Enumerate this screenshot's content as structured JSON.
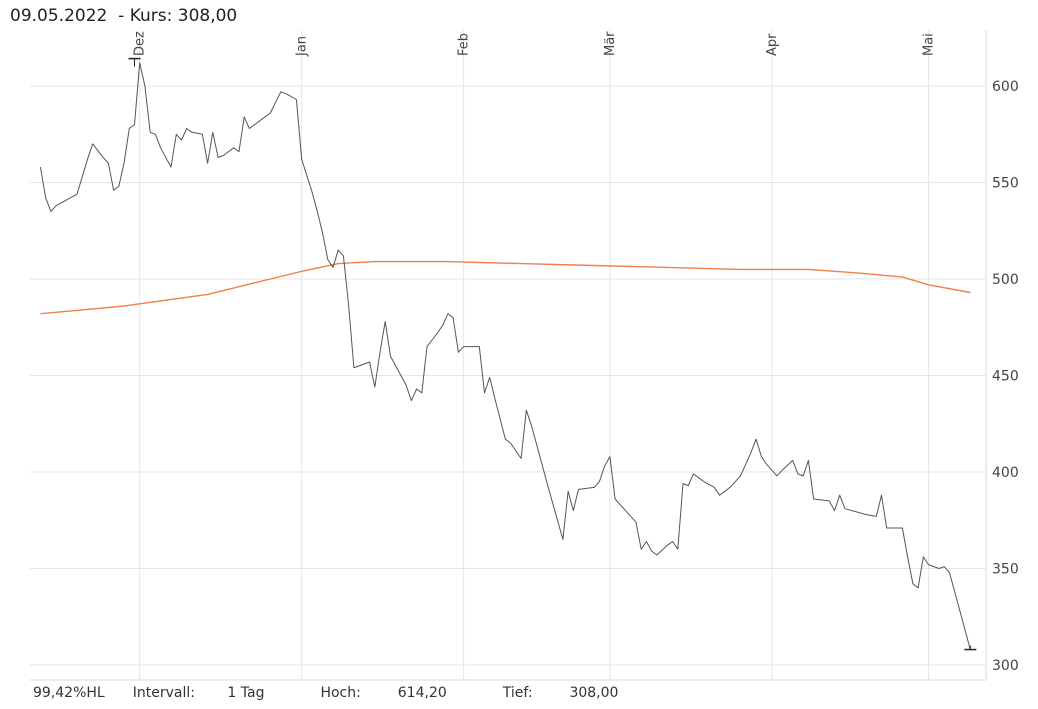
{
  "header": {
    "date": "09.05.2022",
    "kurs_label": "- Kurs:",
    "kurs_value": "308,00"
  },
  "footer": {
    "hl": "99,42%HL",
    "interval_label": "Intervall:",
    "interval_value": "1 Tag",
    "high_label": "Hoch:",
    "high_value": "614,20",
    "low_label": "Tief:",
    "low_value": "308,00"
  },
  "colors": {
    "price": "#555555",
    "ma": "#f0804a",
    "grid": "#e6e6e6"
  },
  "chart_data": {
    "type": "line",
    "title": "",
    "xlabel": "",
    "ylabel": "",
    "ylim": [
      295,
      630
    ],
    "y_ticks": [
      300,
      350,
      400,
      450,
      500,
      550,
      600
    ],
    "y_axis_position": "right",
    "grid": true,
    "x_range": [
      "2021-11-12",
      "2022-05-09"
    ],
    "x_month_ticks": [
      {
        "label": "Dez",
        "date": "2021-12-01"
      },
      {
        "label": "Jan",
        "date": "2022-01-01"
      },
      {
        "label": "Feb",
        "date": "2022-02-01"
      },
      {
        "label": "Mär",
        "date": "2022-03-01"
      },
      {
        "label": "Apr",
        "date": "2022-04-01"
      },
      {
        "label": "Mai",
        "date": "2022-05-01"
      }
    ],
    "markers": [
      {
        "label": "Hoch",
        "date": "2021-11-30",
        "value": 614.2
      },
      {
        "label": "Tief",
        "date": "2022-05-09",
        "value": 308.0
      }
    ],
    "series": [
      {
        "points": [
          [
            "2021-11-12",
            558
          ],
          [
            "2021-11-13",
            542
          ],
          [
            "2021-11-14",
            535
          ],
          [
            "2021-11-15",
            538
          ],
          [
            "2021-11-17",
            541
          ],
          [
            "2021-11-19",
            544
          ],
          [
            "2021-11-21",
            562
          ],
          [
            "2021-11-22",
            570
          ],
          [
            "2021-11-24",
            563
          ],
          [
            "2021-11-25",
            560
          ],
          [
            "2021-11-26",
            546
          ],
          [
            "2021-11-27",
            548
          ],
          [
            "2021-11-28",
            560
          ],
          [
            "2021-11-29",
            578
          ],
          [
            "2021-11-30",
            580
          ],
          [
            "2021-12-01",
            612
          ],
          [
            "2021-12-02",
            600
          ],
          [
            "2021-12-03",
            576
          ],
          [
            "2021-12-04",
            575
          ],
          [
            "2021-12-05",
            568
          ],
          [
            "2021-12-07",
            558
          ],
          [
            "2021-12-08",
            575
          ],
          [
            "2021-12-09",
            572
          ],
          [
            "2021-12-10",
            578
          ],
          [
            "2021-12-11",
            576
          ],
          [
            "2021-12-13",
            575
          ],
          [
            "2021-12-14",
            560
          ],
          [
            "2021-12-15",
            576
          ],
          [
            "2021-12-16",
            563
          ],
          [
            "2021-12-17",
            564
          ],
          [
            "2021-12-19",
            568
          ],
          [
            "2021-12-20",
            566
          ],
          [
            "2021-12-21",
            584
          ],
          [
            "2021-12-22",
            578
          ],
          [
            "2021-12-24",
            582
          ],
          [
            "2021-12-26",
            586
          ],
          [
            "2021-12-28",
            597
          ],
          [
            "2021-12-29",
            596
          ],
          [
            "2021-12-31",
            593
          ],
          [
            "2022-01-01",
            562
          ],
          [
            "2022-01-03",
            545
          ],
          [
            "2022-01-04",
            535
          ],
          [
            "2022-01-05",
            524
          ],
          [
            "2022-01-06",
            510
          ],
          [
            "2022-01-07",
            506
          ],
          [
            "2022-01-08",
            515
          ],
          [
            "2022-01-09",
            512
          ],
          [
            "2022-01-10",
            486
          ],
          [
            "2022-01-11",
            454
          ],
          [
            "2022-01-12",
            455
          ],
          [
            "2022-01-14",
            457
          ],
          [
            "2022-01-15",
            444
          ],
          [
            "2022-01-16",
            462
          ],
          [
            "2022-01-17",
            478
          ],
          [
            "2022-01-18",
            460
          ],
          [
            "2022-01-21",
            445
          ],
          [
            "2022-01-22",
            437
          ],
          [
            "2022-01-23",
            443
          ],
          [
            "2022-01-24",
            441
          ],
          [
            "2022-01-25",
            465
          ],
          [
            "2022-01-27",
            472
          ],
          [
            "2022-01-28",
            476
          ],
          [
            "2022-01-29",
            482
          ],
          [
            "2022-01-30",
            480
          ],
          [
            "2022-01-31",
            462
          ],
          [
            "2022-02-01",
            465
          ],
          [
            "2022-02-02",
            465
          ],
          [
            "2022-02-04",
            465
          ],
          [
            "2022-02-05",
            441
          ],
          [
            "2022-02-06",
            449
          ],
          [
            "2022-02-07",
            438
          ],
          [
            "2022-02-09",
            417
          ],
          [
            "2022-02-10",
            415
          ],
          [
            "2022-02-12",
            407
          ],
          [
            "2022-02-13",
            432
          ],
          [
            "2022-02-14",
            424
          ],
          [
            "2022-02-16",
            404
          ],
          [
            "2022-02-17",
            394
          ],
          [
            "2022-02-20",
            365
          ],
          [
            "2022-02-21",
            390
          ],
          [
            "2022-02-22",
            380
          ],
          [
            "2022-02-23",
            391
          ],
          [
            "2022-02-26",
            392
          ],
          [
            "2022-02-27",
            395
          ],
          [
            "2022-02-28",
            403
          ],
          [
            "2022-03-01",
            408
          ],
          [
            "2022-03-02",
            386
          ],
          [
            "2022-03-03",
            383
          ],
          [
            "2022-03-04",
            380
          ],
          [
            "2022-03-06",
            374
          ],
          [
            "2022-03-07",
            360
          ],
          [
            "2022-03-08",
            364
          ],
          [
            "2022-03-09",
            359
          ],
          [
            "2022-03-10",
            357
          ],
          [
            "2022-03-12",
            362
          ],
          [
            "2022-03-13",
            364
          ],
          [
            "2022-03-14",
            360
          ],
          [
            "2022-03-15",
            394
          ],
          [
            "2022-03-16",
            393
          ],
          [
            "2022-03-17",
            399
          ],
          [
            "2022-03-18",
            397
          ],
          [
            "2022-03-19",
            395
          ],
          [
            "2022-03-21",
            392
          ],
          [
            "2022-03-22",
            388
          ],
          [
            "2022-03-23",
            390
          ],
          [
            "2022-03-24",
            392
          ],
          [
            "2022-03-26",
            398
          ],
          [
            "2022-03-28",
            410
          ],
          [
            "2022-03-29",
            417
          ],
          [
            "2022-03-30",
            408
          ],
          [
            "2022-03-31",
            404
          ],
          [
            "2022-04-02",
            398
          ],
          [
            "2022-04-03",
            401
          ],
          [
            "2022-04-05",
            406
          ],
          [
            "2022-04-06",
            399
          ],
          [
            "2022-04-07",
            398
          ],
          [
            "2022-04-08",
            406
          ],
          [
            "2022-04-09",
            386
          ],
          [
            "2022-04-12",
            385
          ],
          [
            "2022-04-13",
            380
          ],
          [
            "2022-04-14",
            388
          ],
          [
            "2022-04-15",
            381
          ],
          [
            "2022-04-19",
            378
          ],
          [
            "2022-04-21",
            377
          ],
          [
            "2022-04-22",
            388
          ],
          [
            "2022-04-23",
            371
          ],
          [
            "2022-04-26",
            371
          ],
          [
            "2022-04-27",
            356
          ],
          [
            "2022-04-28",
            342
          ],
          [
            "2022-04-29",
            340
          ],
          [
            "2022-04-30",
            356
          ],
          [
            "2022-05-01",
            352
          ],
          [
            "2022-05-03",
            350
          ],
          [
            "2022-05-04",
            351
          ],
          [
            "2022-05-05",
            348
          ],
          [
            "2022-05-06",
            338
          ],
          [
            "2022-05-09",
            308
          ]
        ]
      },
      {
        "points": [
          [
            "2021-11-12",
            482
          ],
          [
            "2021-11-20",
            484
          ],
          [
            "2021-11-28",
            486
          ],
          [
            "2021-12-06",
            489
          ],
          [
            "2021-12-14",
            492
          ],
          [
            "2021-12-20",
            496
          ],
          [
            "2021-12-26",
            500
          ],
          [
            "2022-01-01",
            504
          ],
          [
            "2022-01-08",
            508
          ],
          [
            "2022-01-15",
            509
          ],
          [
            "2022-01-29",
            509
          ],
          [
            "2022-02-12",
            508
          ],
          [
            "2022-02-26",
            507
          ],
          [
            "2022-03-12",
            506
          ],
          [
            "2022-03-26",
            505
          ],
          [
            "2022-04-08",
            505
          ],
          [
            "2022-04-18",
            503
          ],
          [
            "2022-04-26",
            501
          ],
          [
            "2022-05-01",
            497
          ],
          [
            "2022-05-09",
            493
          ]
        ]
      }
    ]
  }
}
